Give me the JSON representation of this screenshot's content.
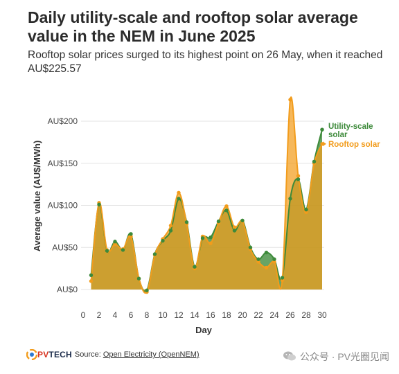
{
  "header": {
    "title": "Daily utility-scale and rooftop solar average value in the NEM in June 2025",
    "subtitle": "Rooftop solar prices surged to its highest point on 26 May, when it reached AU$225.57"
  },
  "footer": {
    "brand_pv": "PV",
    "brand_tech": "TECH",
    "source_label": "Source:",
    "source_link": "Open Electricity (OpenNEM)"
  },
  "watermark": {
    "text": "公众号 · PV光圈见闻"
  },
  "colors": {
    "utility": "#3d8a3a",
    "rooftop": "#f29c1c",
    "overlap": "#cf9a2a",
    "grid": "#e3e3e3",
    "axis_text": "#444444"
  },
  "chart_data": {
    "type": "area",
    "title": "Daily utility-scale and rooftop solar average value in the NEM in June 2025",
    "xlabel": "Day",
    "ylabel": "Average value (AU$/MWh)",
    "xlim": [
      1,
      30
    ],
    "ylim": [
      0,
      200
    ],
    "x_ticks": [
      0,
      2,
      4,
      6,
      8,
      10,
      12,
      14,
      16,
      18,
      20,
      22,
      24,
      26,
      28,
      30
    ],
    "x_tick_labels": [
      "0",
      "2",
      "4",
      "6",
      "8",
      "10",
      "12",
      "14",
      "16",
      "18",
      "20",
      "22",
      "24",
      "26",
      "28",
      "30"
    ],
    "y_ticks": [
      0,
      50,
      100,
      150,
      200
    ],
    "y_tick_labels": [
      "AU$0",
      "AU$50",
      "AU$100",
      "AU$150",
      "AU$200"
    ],
    "grid": "horizontal",
    "legend": "direct labels at right end",
    "x": [
      1,
      2,
      3,
      4,
      5,
      6,
      7,
      8,
      9,
      10,
      11,
      12,
      13,
      14,
      15,
      16,
      17,
      18,
      19,
      20,
      21,
      22,
      23,
      24,
      25,
      26,
      27,
      28,
      29,
      30
    ],
    "series": [
      {
        "name": "Utility-scale solar",
        "values": [
          17,
          101,
          46,
          57,
          47,
          66,
          13,
          -1,
          42,
          58,
          70,
          108,
          80,
          27,
          61,
          62,
          81,
          94,
          70,
          82,
          50,
          36,
          44,
          36,
          14,
          108,
          131,
          95,
          152,
          190
        ]
      },
      {
        "name": "Rooftop solar",
        "values": [
          10,
          103,
          47,
          54,
          48,
          63,
          13,
          -3,
          41,
          60,
          76,
          115,
          78,
          25,
          63,
          55,
          79,
          99,
          74,
          81,
          48,
          33,
          26,
          33,
          11,
          225.57,
          135,
          92,
          150,
          173
        ]
      }
    ]
  }
}
